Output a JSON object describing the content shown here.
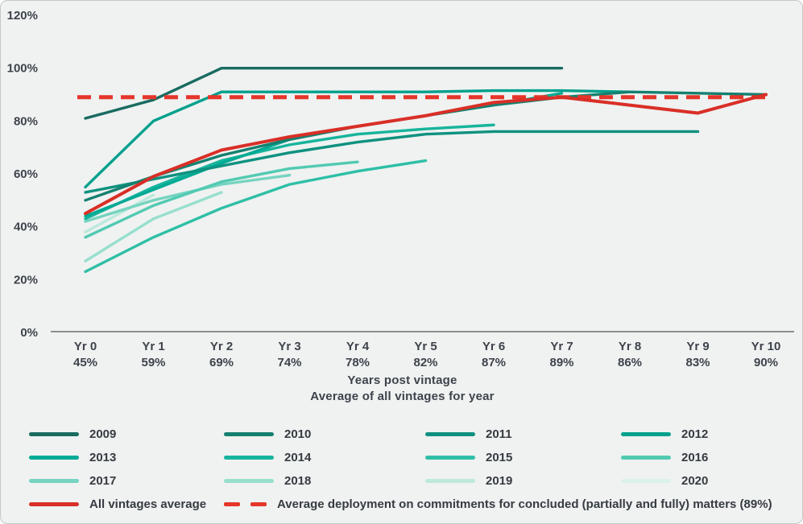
{
  "chart_data": {
    "type": "line",
    "xlabel_line1": "Years post vintage",
    "xlabel_line2": "Average of all vintages for year",
    "y_ticks": [
      "0%",
      "20%",
      "40%",
      "60%",
      "80%",
      "100%",
      "120%"
    ],
    "ylim": [
      0,
      120
    ],
    "x_tick_labels": [
      "Yr 0",
      "Yr 1",
      "Yr 2",
      "Yr 3",
      "Yr 4",
      "Yr 5",
      "Yr 6",
      "Yr 7",
      "Yr 8",
      "Yr 9",
      "Yr 10"
    ],
    "x_tick_sublabels": [
      "45%",
      "59%",
      "69%",
      "74%",
      "78%",
      "82%",
      "87%",
      "89%",
      "86%",
      "83%",
      "90%"
    ],
    "grid": false,
    "legend_position": "bottom",
    "series": [
      {
        "name": "2009",
        "color": "#1a6b60",
        "values": [
          81,
          88,
          100,
          100,
          100,
          100,
          100,
          100
        ]
      },
      {
        "name": "2010",
        "color": "#14806f",
        "values": [
          50,
          59,
          67,
          73,
          78,
          82,
          86,
          89,
          91,
          90.5,
          90
        ]
      },
      {
        "name": "2011",
        "color": "#0f9180",
        "values": [
          53,
          58,
          63,
          68,
          72,
          75,
          76,
          76,
          76,
          76
        ]
      },
      {
        "name": "2012",
        "color": "#00a08c",
        "values": [
          55,
          80,
          91,
          91,
          91,
          91,
          91.5,
          91.5,
          91
        ]
      },
      {
        "name": "2013",
        "color": "#00aa94",
        "values": [
          44,
          54,
          64,
          73,
          78,
          82,
          86,
          90.5
        ]
      },
      {
        "name": "2014",
        "color": "#17b49c",
        "values": [
          43,
          55,
          65,
          71,
          75,
          77,
          78.5
        ]
      },
      {
        "name": "2015",
        "color": "#2fbfa6",
        "values": [
          23,
          36,
          47,
          56,
          61,
          65
        ]
      },
      {
        "name": "2016",
        "color": "#52cab2",
        "values": [
          36,
          48,
          57,
          62,
          64.5
        ]
      },
      {
        "name": "2017",
        "color": "#76d4c0",
        "values": [
          42,
          50,
          56,
          59.5
        ]
      },
      {
        "name": "2018",
        "color": "#98dfce",
        "values": [
          27,
          43,
          53
        ]
      },
      {
        "name": "2019",
        "color": "#bce9dc",
        "values": [
          38,
          52
        ]
      },
      {
        "name": "2020",
        "color": "#daf2ea",
        "values": [
          44
        ]
      }
    ],
    "average_series": {
      "name": "All vintages average",
      "color": "#d92f27",
      "values": [
        45,
        59,
        69,
        74,
        78,
        82,
        87,
        89,
        86,
        83,
        90
      ]
    },
    "reference_line": {
      "label": "Average deployment on commitments for concluded (partially and fully) matters (89%)",
      "value": 89,
      "color": "#e6352a",
      "style": "dashed"
    }
  }
}
